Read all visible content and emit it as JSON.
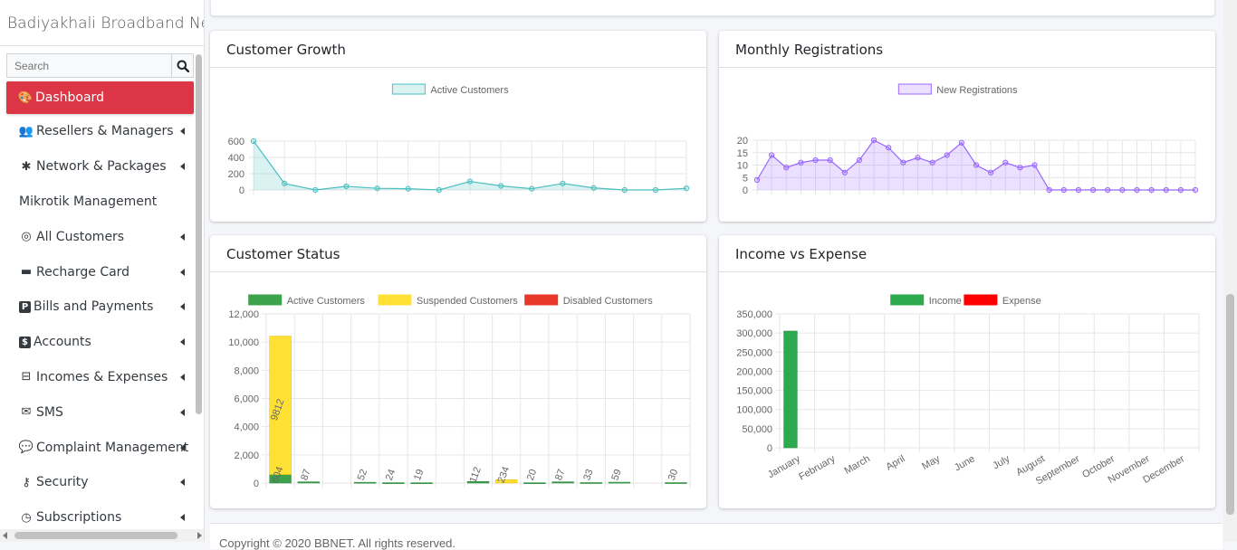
{
  "brand": "Badiyakhali Broadband Network",
  "search": {
    "placeholder": "Search"
  },
  "nav": [
    {
      "label": "Dashboard",
      "icon": "palette-icon",
      "active": true,
      "caret": false
    },
    {
      "label": "Resellers & Managers",
      "icon": "users-cog-icon",
      "caret": true
    },
    {
      "label": "Network & Packages",
      "icon": "asterisk-icon",
      "caret": true
    },
    {
      "label": "Mikrotik Management",
      "icon": "",
      "caret": false
    },
    {
      "label": "All Customers",
      "icon": "user-circle-icon",
      "caret": true
    },
    {
      "label": "Recharge Card",
      "icon": "store-icon",
      "caret": true
    },
    {
      "label": "Bills and Payments",
      "icon": "parking-icon",
      "caret": true
    },
    {
      "label": "Accounts",
      "icon": "money-check-icon",
      "caret": true
    },
    {
      "label": "Incomes & Expenses",
      "icon": "minus-square-icon",
      "caret": true
    },
    {
      "label": "SMS",
      "icon": "envelope-icon",
      "caret": true
    },
    {
      "label": "Complaint Management",
      "icon": "comments-icon",
      "caret": true
    },
    {
      "label": "Security",
      "icon": "key-icon",
      "caret": true
    },
    {
      "label": "Subscriptions",
      "icon": "clock-icon",
      "caret": true
    }
  ],
  "cards": {
    "growth": {
      "title": "Customer Growth"
    },
    "registrations": {
      "title": "Monthly Registrations"
    },
    "status": {
      "title": "Customer Status"
    },
    "income": {
      "title": "Income vs Expense"
    }
  },
  "colors": {
    "danger": "#dc3545",
    "active_customers": "#4bc0c0",
    "registrations": "#9966ff",
    "green": "#3ca24c",
    "yellow": "#ffe135",
    "red": "#e8382a",
    "expense": "#ff0000"
  },
  "footer": {
    "text": "Copyright © 2020 BBNET. All rights reserved."
  },
  "chart_data": [
    {
      "id": "growth",
      "type": "area",
      "legend": [
        "Active Customers"
      ],
      "ylim": [
        0,
        600
      ],
      "yticks": [
        0,
        200,
        400,
        600
      ],
      "series": [
        {
          "name": "Active Customers",
          "values": [
            600,
            80,
            0,
            45,
            20,
            15,
            0,
            105,
            50,
            15,
            80,
            25,
            0,
            0,
            20
          ]
        }
      ]
    },
    {
      "id": "registrations",
      "type": "area",
      "legend": [
        "New Registrations"
      ],
      "ylim": [
        0,
        20
      ],
      "yticks": [
        0,
        5,
        10,
        15,
        20
      ],
      "series": [
        {
          "name": "New Registrations",
          "values": [
            4,
            14,
            9,
            11,
            12,
            12,
            7,
            12,
            20,
            17,
            11,
            13,
            11,
            14,
            19,
            10,
            7,
            11,
            9,
            10,
            0,
            0,
            0,
            0,
            0,
            0,
            0,
            0,
            0,
            0,
            0
          ]
        }
      ]
    },
    {
      "id": "status",
      "type": "bar",
      "legend": [
        "Active Customers",
        "Suspended Customers",
        "Disabled Customers"
      ],
      "ylim": [
        0,
        12000
      ],
      "yticks": [
        "0",
        "2,000",
        "4,000",
        "6,000",
        "8,000",
        "10,000",
        "12,000"
      ],
      "series": [
        {
          "name": "Active Customers",
          "values": [
            604,
            87,
            0,
            52,
            24,
            19,
            0,
            112,
            0,
            20,
            87,
            33,
            59,
            0,
            30
          ]
        },
        {
          "name": "Suspended Customers",
          "values": [
            9812,
            0,
            0,
            0,
            0,
            0,
            0,
            0,
            234,
            0,
            0,
            0,
            0,
            0,
            0
          ]
        },
        {
          "name": "Disabled Customers",
          "values": [
            0,
            0,
            0,
            0,
            0,
            0,
            0,
            0,
            0,
            0,
            0,
            0,
            0,
            0,
            0
          ]
        }
      ],
      "labels": [
        "604",
        "87",
        "",
        "52",
        "24",
        "19",
        "",
        "112",
        "234",
        "20",
        "87",
        "33",
        "59",
        "",
        "30"
      ],
      "big_label": "9812"
    },
    {
      "id": "income",
      "type": "bar",
      "legend": [
        "Income",
        "Expense"
      ],
      "ylim": [
        0,
        350000
      ],
      "yticks": [
        "0",
        "50,000",
        "100,000",
        "150,000",
        "200,000",
        "250,000",
        "300,000",
        "350,000"
      ],
      "categories": [
        "January",
        "February",
        "March",
        "April",
        "May",
        "June",
        "July",
        "August",
        "September",
        "October",
        "November",
        "December"
      ],
      "series": [
        {
          "name": "Income",
          "values": [
            305000,
            0,
            0,
            0,
            0,
            0,
            0,
            0,
            0,
            0,
            0,
            0
          ]
        },
        {
          "name": "Expense",
          "values": [
            0,
            0,
            0,
            0,
            0,
            0,
            0,
            0,
            0,
            0,
            0,
            0
          ]
        }
      ]
    }
  ]
}
